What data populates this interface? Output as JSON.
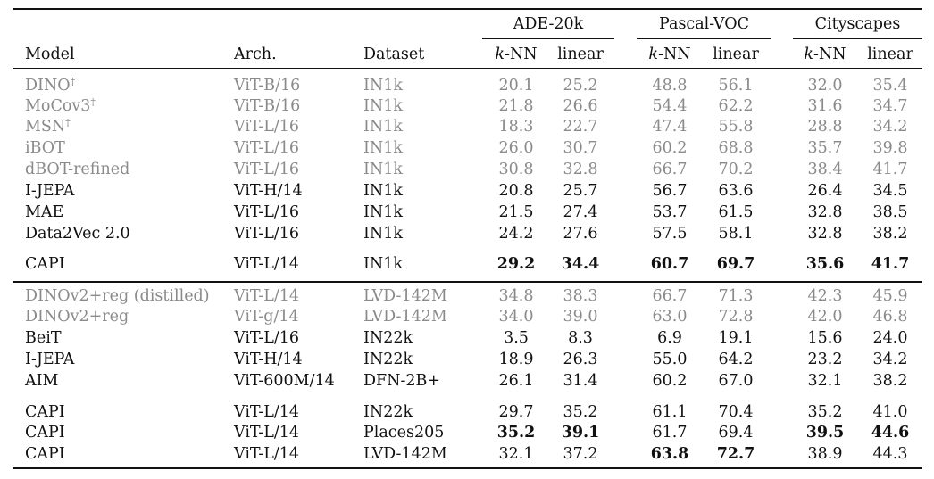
{
  "columns": {
    "model": "Model",
    "arch": "Arch.",
    "dataset": "Dataset",
    "group_ade": "ADE-20k",
    "group_voc": "Pascal-VOC",
    "group_city": "Cityscapes",
    "knn_k": "k",
    "knn_rest": "-NN",
    "linear": "linear"
  },
  "rows": [
    {
      "model": "DINO",
      "sup": "†",
      "arch": "ViT-B/16",
      "dataset": "IN1k",
      "values": [
        "20.1",
        "25.2",
        "48.8",
        "56.1",
        "32.0",
        "35.4"
      ],
      "grey": true,
      "bold": []
    },
    {
      "model": "MoCov3",
      "sup": "†",
      "arch": "ViT-B/16",
      "dataset": "IN1k",
      "values": [
        "21.8",
        "26.6",
        "54.4",
        "62.2",
        "31.6",
        "34.7"
      ],
      "grey": true,
      "bold": []
    },
    {
      "model": "MSN",
      "sup": "†",
      "arch": "ViT-L/16",
      "dataset": "IN1k",
      "values": [
        "18.3",
        "22.7",
        "47.4",
        "55.8",
        "28.8",
        "34.2"
      ],
      "grey": true,
      "bold": []
    },
    {
      "model": "iBOT",
      "sup": "",
      "arch": "ViT-L/16",
      "dataset": "IN1k",
      "values": [
        "26.0",
        "30.7",
        "60.2",
        "68.8",
        "35.7",
        "39.8"
      ],
      "grey": true,
      "bold": []
    },
    {
      "model": "dBOT-refined",
      "sup": "",
      "arch": "ViT-L/16",
      "dataset": "IN1k",
      "values": [
        "30.8",
        "32.8",
        "66.7",
        "70.2",
        "38.4",
        "41.7"
      ],
      "grey": true,
      "bold": []
    },
    {
      "model": "I-JEPA",
      "sup": "",
      "arch": "ViT-H/14",
      "dataset": "IN1k",
      "values": [
        "20.8",
        "25.7",
        "56.7",
        "63.6",
        "26.4",
        "34.5"
      ],
      "grey": false,
      "bold": []
    },
    {
      "model": "MAE",
      "sup": "",
      "arch": "ViT-L/16",
      "dataset": "IN1k",
      "values": [
        "21.5",
        "27.4",
        "53.7",
        "61.5",
        "32.8",
        "38.5"
      ],
      "grey": false,
      "bold": []
    },
    {
      "model": "Data2Vec 2.0",
      "sup": "",
      "arch": "ViT-L/16",
      "dataset": "IN1k",
      "values": [
        "24.2",
        "27.6",
        "57.5",
        "58.1",
        "32.8",
        "38.2"
      ],
      "grey": false,
      "bold": []
    },
    {
      "model": "CAPI",
      "sup": "",
      "arch": "ViT-L/14",
      "dataset": "IN1k",
      "values": [
        "29.2",
        "34.4",
        "60.7",
        "69.7",
        "35.6",
        "41.7"
      ],
      "grey": false,
      "bold": [
        0,
        1,
        2,
        3,
        4,
        5
      ]
    },
    {
      "model": "DINOv2+reg (distilled)",
      "sup": "",
      "arch": "ViT-L/14",
      "dataset": "LVD-142M",
      "values": [
        "34.8",
        "38.3",
        "66.7",
        "71.3",
        "42.3",
        "45.9"
      ],
      "grey": true,
      "bold": []
    },
    {
      "model": "DINOv2+reg",
      "sup": "",
      "arch": "ViT-g/14",
      "dataset": "LVD-142M",
      "values": [
        "34.0",
        "39.0",
        "63.0",
        "72.8",
        "42.0",
        "46.8"
      ],
      "grey": true,
      "bold": []
    },
    {
      "model": "BeiT",
      "sup": "",
      "arch": "ViT-L/16",
      "dataset": "IN22k",
      "values": [
        "3.5",
        "8.3",
        "6.9",
        "19.1",
        "15.6",
        "24.0"
      ],
      "grey": false,
      "bold": []
    },
    {
      "model": "I-JEPA",
      "sup": "",
      "arch": "ViT-H/14",
      "dataset": "IN22k",
      "values": [
        "18.9",
        "26.3",
        "55.0",
        "64.2",
        "23.2",
        "34.2"
      ],
      "grey": false,
      "bold": []
    },
    {
      "model": "AIM",
      "sup": "",
      "arch": "ViT-600M/14",
      "dataset": "DFN-2B+",
      "values": [
        "26.1",
        "31.4",
        "60.2",
        "67.0",
        "32.1",
        "38.2"
      ],
      "grey": false,
      "bold": []
    },
    {
      "model": "CAPI",
      "sup": "",
      "arch": "ViT-L/14",
      "dataset": "IN22k",
      "values": [
        "29.7",
        "35.2",
        "61.1",
        "70.4",
        "35.2",
        "41.0"
      ],
      "grey": false,
      "bold": []
    },
    {
      "model": "CAPI",
      "sup": "",
      "arch": "ViT-L/14",
      "dataset": "Places205",
      "values": [
        "35.2",
        "39.1",
        "61.7",
        "69.4",
        "39.5",
        "44.6"
      ],
      "grey": false,
      "bold": [
        0,
        1,
        4,
        5
      ]
    },
    {
      "model": "CAPI",
      "sup": "",
      "arch": "ViT-L/14",
      "dataset": "LVD-142M",
      "values": [
        "32.1",
        "37.2",
        "63.8",
        "72.7",
        "38.9",
        "44.3"
      ],
      "grey": false,
      "bold": [
        2,
        3
      ]
    }
  ]
}
